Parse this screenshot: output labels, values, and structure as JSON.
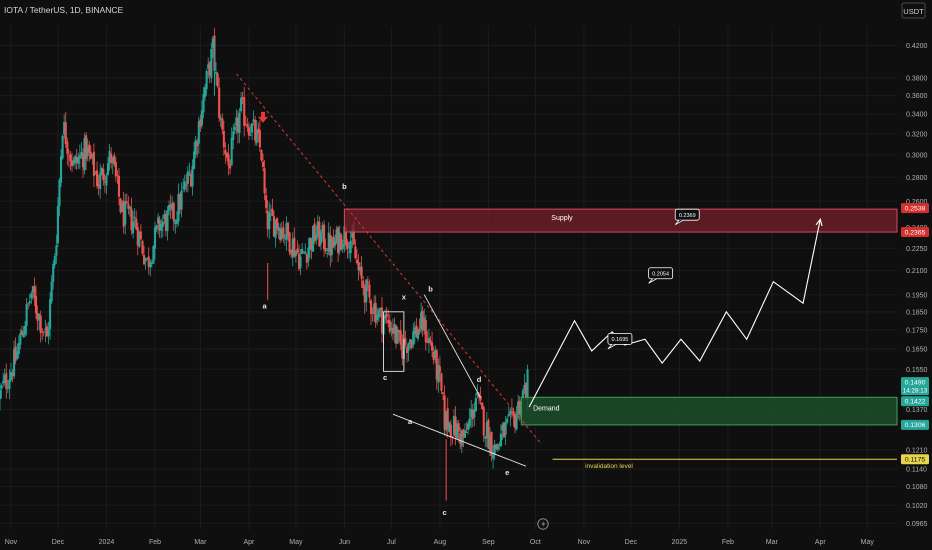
{
  "header": {
    "symbol": "IOTA / TetherUS, 1D, BINANCE",
    "currency_button": "USDT"
  },
  "colors": {
    "background": "#0f0f0f",
    "bull": "#26a69a",
    "bear": "#ef5350",
    "supply_zone": "#7a1e2b",
    "demand_zone": "#1c4d2a",
    "invalidation": "#e8d44d",
    "projection": "#ffffff",
    "trendline": "#d33b3b"
  },
  "chart_data": {
    "type": "candlestick",
    "symbol": "IOTA / TetherUS",
    "timeframe": "1D",
    "exchange": "BINANCE",
    "x_axis": {
      "labels": [
        "Nov",
        "Dec",
        "2024",
        "Feb",
        "Mar",
        "Apr",
        "May",
        "Jun",
        "Jul",
        "Aug",
        "Sep",
        "Oct",
        "Nov",
        "Dec",
        "2025",
        "Feb",
        "Mar",
        "Apr",
        "May"
      ],
      "range": [
        "2023-10-25",
        "2025-05-20"
      ]
    },
    "y_axis": {
      "labels": [
        "0.4200",
        "0.3800",
        "0.3600",
        "0.3400",
        "0.3200",
        "0.3000",
        "0.2800",
        "0.2600",
        "0.2400",
        "0.2250",
        "0.2100",
        "0.1950",
        "0.1850",
        "0.1750",
        "0.1650",
        "0.1550",
        "0.1370",
        "0.1210",
        "0.1140",
        "0.1080",
        "0.1020",
        "0.0965"
      ],
      "scale": "log",
      "range": [
        0.0945,
        0.446
      ],
      "side": "right"
    },
    "price_tags": [
      {
        "value": "0.2538",
        "color": "#d32f2f"
      },
      {
        "value": "0.2365",
        "color": "#d32f2f"
      },
      {
        "value": "0.1490",
        "sub": "14:28:13",
        "color": "#26a69a"
      },
      {
        "value": "0.1422",
        "color": "#26a69a"
      },
      {
        "value": "0.1306",
        "color": "#26a69a"
      },
      {
        "value": "0.1175",
        "color": "#e8d44d"
      }
    ],
    "price_path": [
      [
        "2023-10-25",
        0.142
      ],
      [
        "2023-11-05",
        0.16
      ],
      [
        "2023-11-15",
        0.196
      ],
      [
        "2023-11-25",
        0.17
      ],
      [
        "2023-12-01",
        0.235
      ],
      [
        "2023-12-05",
        0.33
      ],
      [
        "2023-12-12",
        0.29
      ],
      [
        "2023-12-20",
        0.305
      ],
      [
        "2023-12-28",
        0.276
      ],
      [
        "2024-01-05",
        0.298
      ],
      [
        "2024-01-12",
        0.25
      ],
      [
        "2024-01-20",
        0.245
      ],
      [
        "2024-01-28",
        0.215
      ],
      [
        "2024-02-05",
        0.242
      ],
      [
        "2024-02-15",
        0.25
      ],
      [
        "2024-02-25",
        0.285
      ],
      [
        "2024-03-03",
        0.35
      ],
      [
        "2024-03-10",
        0.415
      ],
      [
        "2024-03-15",
        0.33
      ],
      [
        "2024-03-20",
        0.29
      ],
      [
        "2024-03-28",
        0.345
      ],
      [
        "2024-04-05",
        0.322
      ],
      [
        "2024-04-10",
        0.302
      ],
      [
        "2024-04-13",
        0.245
      ],
      [
        "2024-04-20",
        0.244
      ],
      [
        "2024-04-28",
        0.232
      ],
      [
        "2024-05-05",
        0.218
      ],
      [
        "2024-05-15",
        0.236
      ],
      [
        "2024-05-25",
        0.225
      ],
      [
        "2024-06-01",
        0.236
      ],
      [
        "2024-06-06",
        0.232
      ],
      [
        "2024-06-12",
        0.205
      ],
      [
        "2024-06-18",
        0.192
      ],
      [
        "2024-06-25",
        0.182
      ],
      [
        "2024-07-02",
        0.178
      ],
      [
        "2024-07-08",
        0.165
      ],
      [
        "2024-07-15",
        0.172
      ],
      [
        "2024-07-22",
        0.178
      ],
      [
        "2024-07-28",
        0.165
      ],
      [
        "2024-08-02",
        0.148
      ],
      [
        "2024-08-05",
        0.133
      ],
      [
        "2024-08-10",
        0.13
      ],
      [
        "2024-08-18",
        0.125
      ],
      [
        "2024-08-25",
        0.142
      ],
      [
        "2024-09-01",
        0.128
      ],
      [
        "2024-09-06",
        0.121
      ],
      [
        "2024-09-12",
        0.128
      ],
      [
        "2024-09-18",
        0.132
      ],
      [
        "2024-09-22",
        0.14
      ],
      [
        "2024-09-27",
        0.149
      ]
    ],
    "zones": [
      {
        "name": "Supply",
        "top": 0.2538,
        "bottom": 0.2365,
        "start": "2024-06-01"
      },
      {
        "name": "Demand",
        "top": 0.1422,
        "bottom": 0.1306,
        "start": "2024-09-22"
      }
    ],
    "invalidation": {
      "label": "invalidation level",
      "value": 0.1175,
      "start": "2024-10-12"
    },
    "trendline": {
      "start": [
        "2024-03-24",
        0.385
      ],
      "end": [
        "2024-10-05",
        0.123
      ]
    },
    "wave_lines": [
      {
        "points": [
          [
            "2024-07-22",
            0.195
          ],
          [
            "2024-08-27",
            0.142
          ]
        ]
      },
      {
        "points": [
          [
            "2024-07-02",
            0.135
          ],
          [
            "2024-09-25",
            0.115
          ]
        ]
      }
    ],
    "correction_box": {
      "start": [
        "2024-06-26",
        0.185
      ],
      "end": [
        "2024-07-09",
        0.154
      ]
    },
    "wave_labels": [
      {
        "label": "a",
        "x": "2024-04-11",
        "y": 0.187
      },
      {
        "label": "b",
        "x": "2024-06-01",
        "y": 0.27
      },
      {
        "label": "x",
        "x": "2024-07-09",
        "y": 0.192
      },
      {
        "label": "b",
        "x": "2024-07-26",
        "y": 0.197
      },
      {
        "label": "c",
        "x": "2024-06-27",
        "y": 0.15
      },
      {
        "label": "a",
        "x": "2024-07-13",
        "y": 0.131
      },
      {
        "label": "d",
        "x": "2024-08-26",
        "y": 0.149
      },
      {
        "label": "e",
        "x": "2024-09-13",
        "y": 0.112
      },
      {
        "label": "c",
        "x": "2024-08-04",
        "y": 0.099
      }
    ],
    "projection_path": [
      [
        "2024-09-27",
        0.138
      ],
      [
        "2024-10-26",
        0.18
      ],
      [
        "2024-11-06",
        0.164
      ],
      [
        "2024-11-19",
        0.174
      ],
      [
        "2024-11-27",
        0.167
      ],
      [
        "2024-12-10",
        0.17
      ],
      [
        "2024-12-21",
        0.158
      ],
      [
        "2025-01-02",
        0.17
      ],
      [
        "2025-01-14",
        0.159
      ],
      [
        "2025-01-31",
        0.185
      ],
      [
        "2025-02-13",
        0.17
      ],
      [
        "2025-03-02",
        0.203
      ],
      [
        "2025-03-21",
        0.19
      ],
      [
        "2025-04-01",
        0.246
      ]
    ],
    "target_labels": [
      {
        "label": "0.1695",
        "x": "2024-11-24",
        "y": 0.1702
      },
      {
        "label": "0.2054",
        "x": "2024-12-20",
        "y": 0.2083
      },
      {
        "label": "0.2369",
        "x": "2025-01-06",
        "y": 0.2495
      }
    ],
    "drop_arrow": {
      "x": "2024-04-10",
      "y": 0.333
    }
  }
}
